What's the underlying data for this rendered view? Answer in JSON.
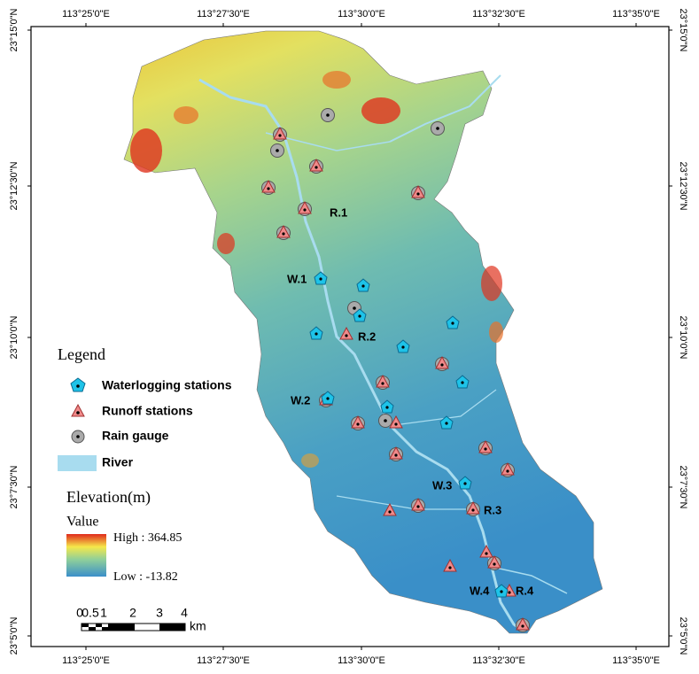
{
  "map": {
    "lon_labels": [
      "113°25'0\"E",
      "113°27'30\"E",
      "113°30'0\"E",
      "113°32'30\"E",
      "113°35'0\"E"
    ],
    "lat_labels": [
      "23°15'0\"N",
      "23°12'30\"N",
      "23°10'0\"N",
      "23°7'30\"N",
      "23°5'0\"N"
    ],
    "station_labels": [
      "R.1",
      "R.2",
      "R.3",
      "R.4",
      "W.1",
      "W.2",
      "W.3",
      "W.4"
    ],
    "legend": {
      "title": "Legend",
      "items": [
        "Waterlogging stations",
        "Runoff stations",
        "Rain gauge",
        "River"
      ],
      "elevation_title": "Elevation(m)",
      "value_title": "Value",
      "high": "High : 364.85",
      "low": "Low : -13.82"
    },
    "scale_bar": {
      "labels": [
        "0",
        "0.5",
        "1",
        "2",
        "3",
        "4"
      ],
      "unit": "km"
    }
  }
}
